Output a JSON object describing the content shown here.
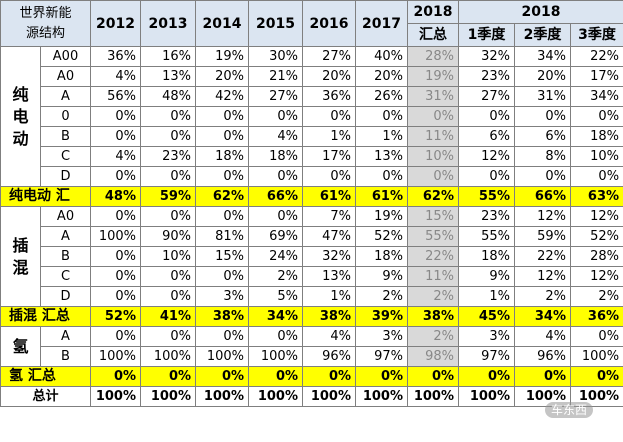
{
  "header": {
    "corner": [
      "世界新能",
      "源结构"
    ],
    "years": [
      "2012",
      "2013",
      "2014",
      "2015",
      "2016",
      "2017"
    ],
    "summary_year": "2018",
    "summary_label": "汇总",
    "quarter_year": "2018",
    "quarters": [
      "1季度",
      "2季度",
      "3季度"
    ]
  },
  "groups": [
    {
      "name_chars": [
        "纯",
        "电",
        "动"
      ],
      "rows": [
        {
          "label": "A00",
          "values": [
            "36%",
            "16%",
            "19%",
            "30%",
            "27%",
            "40%",
            "28%",
            "32%",
            "34%",
            "22%"
          ]
        },
        {
          "label": "A0",
          "values": [
            "4%",
            "13%",
            "20%",
            "21%",
            "20%",
            "20%",
            "19%",
            "23%",
            "20%",
            "17%"
          ]
        },
        {
          "label": "A",
          "values": [
            "56%",
            "48%",
            "42%",
            "27%",
            "36%",
            "26%",
            "31%",
            "27%",
            "31%",
            "34%"
          ]
        },
        {
          "label": "0",
          "values": [
            "0%",
            "0%",
            "0%",
            "0%",
            "0%",
            "0%",
            "0%",
            "0%",
            "0%",
            "0%"
          ]
        },
        {
          "label": "B",
          "values": [
            "0%",
            "0%",
            "0%",
            "4%",
            "1%",
            "1%",
            "11%",
            "6%",
            "6%",
            "18%"
          ]
        },
        {
          "label": "C",
          "values": [
            "4%",
            "23%",
            "18%",
            "18%",
            "17%",
            "13%",
            "10%",
            "12%",
            "8%",
            "10%"
          ]
        },
        {
          "label": "D",
          "values": [
            "0%",
            "0%",
            "0%",
            "0%",
            "0%",
            "0%",
            "0%",
            "0%",
            "0%",
            "0%"
          ]
        }
      ],
      "summary": {
        "label": "纯电动 汇",
        "values": [
          "48%",
          "59%",
          "62%",
          "66%",
          "61%",
          "61%",
          "62%",
          "55%",
          "66%",
          "63%"
        ]
      }
    },
    {
      "name_chars": [
        "插",
        "混"
      ],
      "rows": [
        {
          "label": "A0",
          "values": [
            "0%",
            "0%",
            "0%",
            "0%",
            "7%",
            "19%",
            "15%",
            "23%",
            "12%",
            "12%"
          ]
        },
        {
          "label": "A",
          "values": [
            "100%",
            "90%",
            "81%",
            "69%",
            "47%",
            "52%",
            "55%",
            "55%",
            "59%",
            "52%"
          ]
        },
        {
          "label": "B",
          "values": [
            "0%",
            "10%",
            "15%",
            "24%",
            "32%",
            "18%",
            "22%",
            "18%",
            "22%",
            "28%"
          ]
        },
        {
          "label": "C",
          "values": [
            "0%",
            "0%",
            "0%",
            "2%",
            "13%",
            "9%",
            "11%",
            "9%",
            "12%",
            "12%"
          ]
        },
        {
          "label": "D",
          "values": [
            "0%",
            "0%",
            "3%",
            "5%",
            "1%",
            "2%",
            "2%",
            "1%",
            "2%",
            "2%"
          ]
        }
      ],
      "summary": {
        "label": "插混 汇总",
        "values": [
          "52%",
          "41%",
          "38%",
          "34%",
          "38%",
          "39%",
          "38%",
          "45%",
          "34%",
          "36%"
        ]
      }
    },
    {
      "name_chars": [
        "氢"
      ],
      "rows": [
        {
          "label": "A",
          "values": [
            "0%",
            "0%",
            "0%",
            "0%",
            "4%",
            "3%",
            "2%",
            "3%",
            "4%",
            "0%"
          ]
        },
        {
          "label": "B",
          "values": [
            "100%",
            "100%",
            "100%",
            "100%",
            "96%",
            "97%",
            "98%",
            "97%",
            "96%",
            "100%"
          ]
        }
      ],
      "summary": {
        "label": "氢 汇总",
        "values": [
          "0%",
          "0%",
          "0%",
          "0%",
          "0%",
          "0%",
          "0%",
          "0%",
          "0%",
          "0%"
        ]
      }
    }
  ],
  "total": {
    "label": "总计",
    "values": [
      "100%",
      "100%",
      "100%",
      "100%",
      "100%",
      "100%",
      "100%",
      "100%",
      "100%",
      "100%"
    ]
  },
  "watermark": "车东西",
  "colors": {
    "summary_highlight": "#ffff00",
    "column_2018_shade": "#d9d9d9",
    "header_fill": "#dbe5f1"
  }
}
